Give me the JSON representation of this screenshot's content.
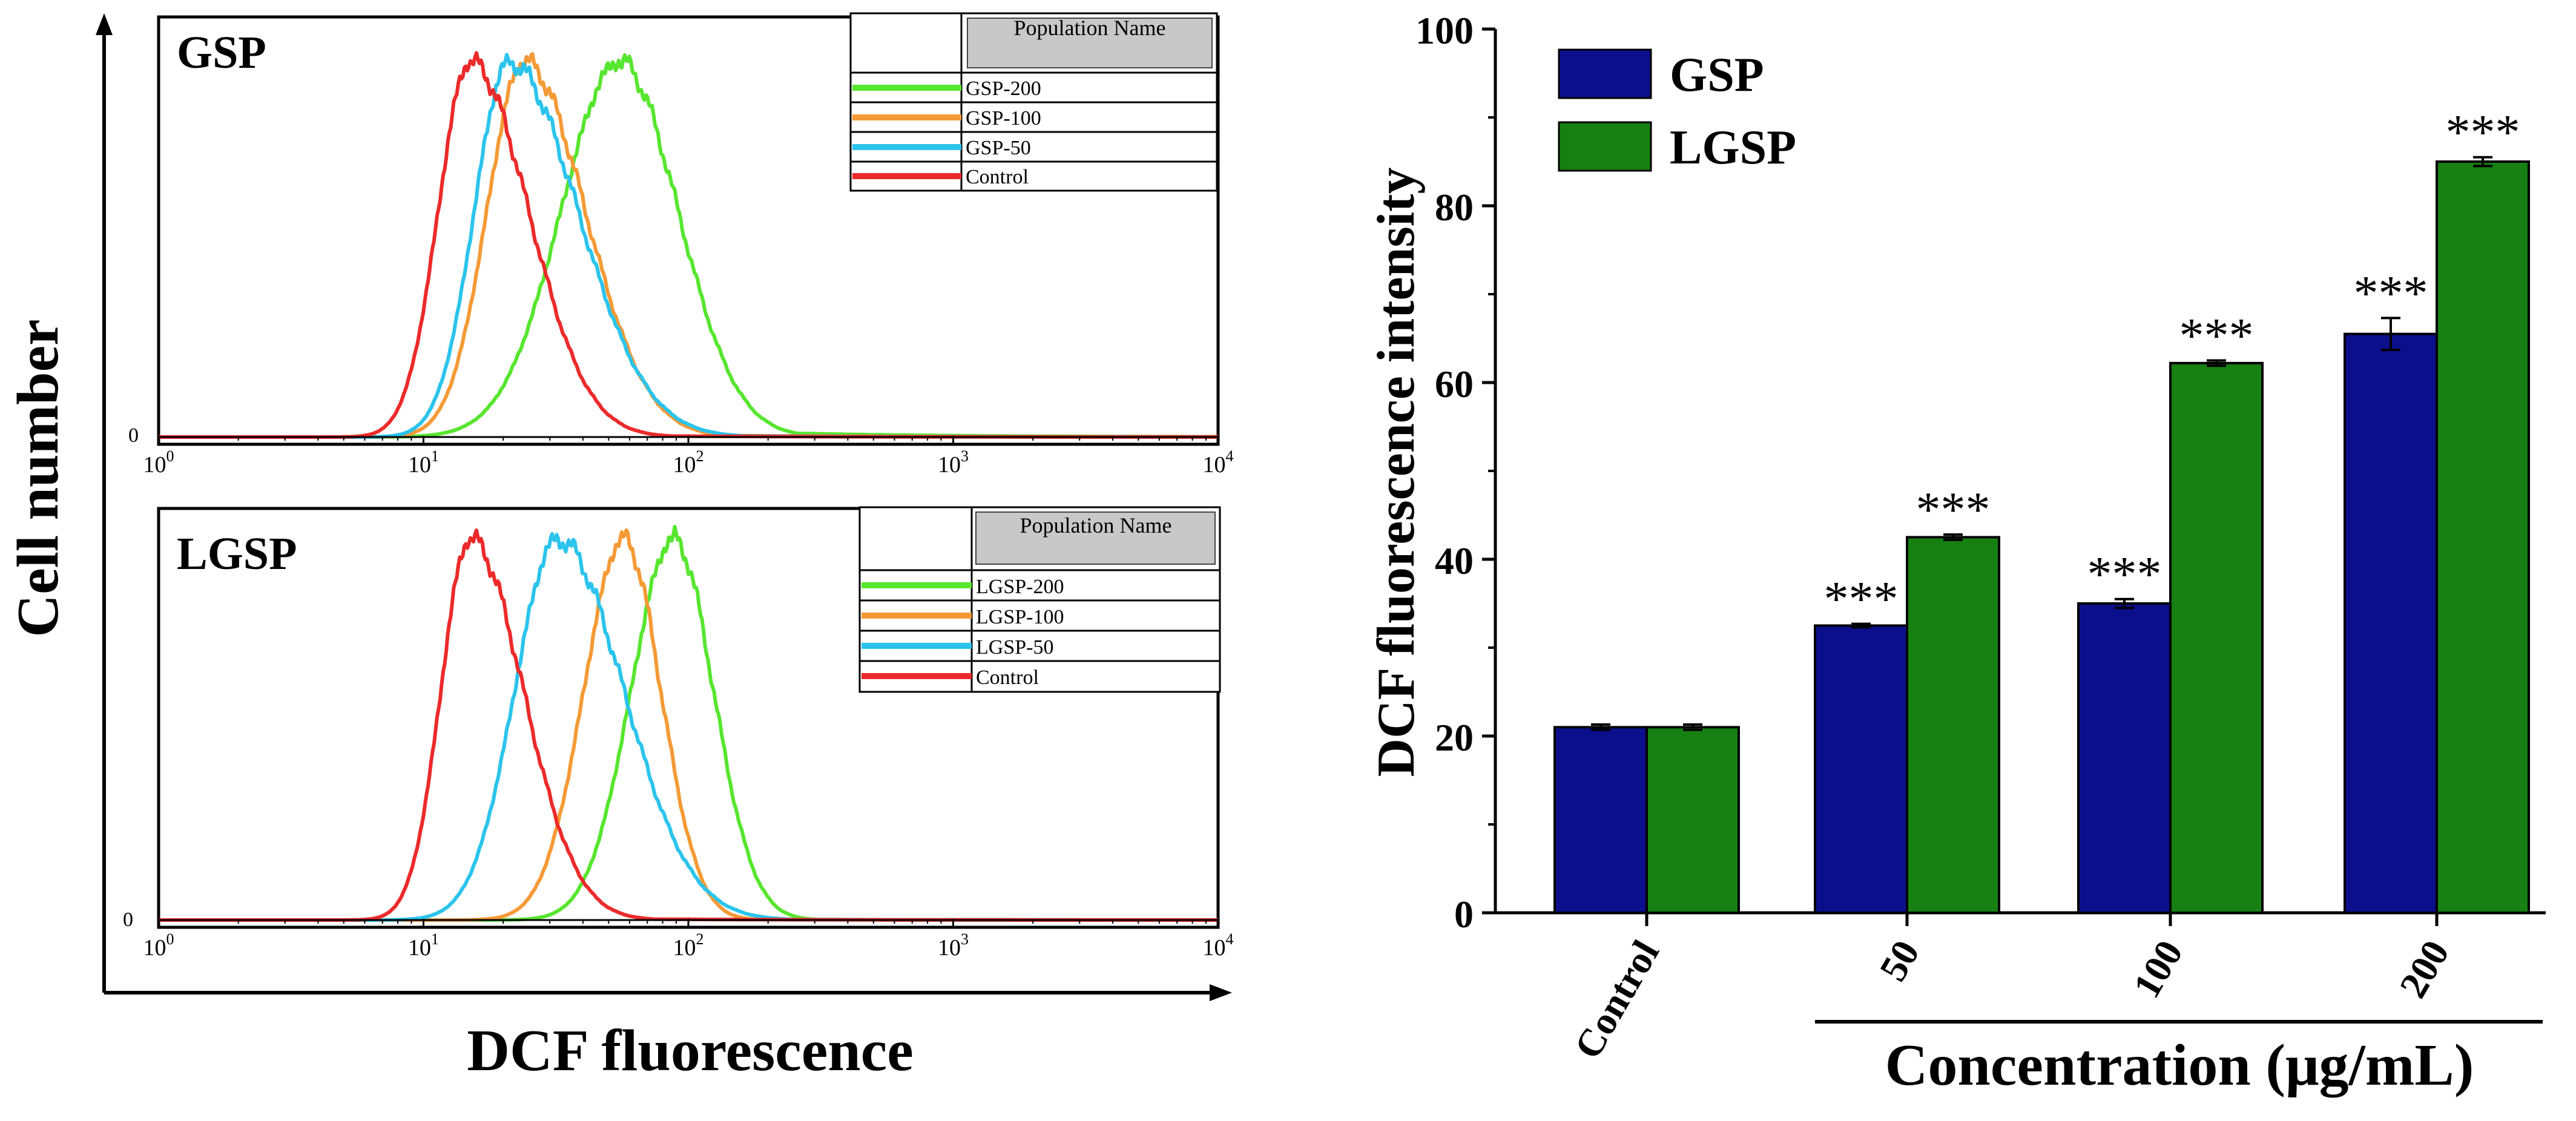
{
  "colors": {
    "gsp_bar": "#0b0f8c",
    "lgsp_bar": "#178012",
    "green_curve": "#57e62f",
    "orange_curve": "#f59a36",
    "blue_curve": "#2bc4ec",
    "red_curve": "#ec2a2a",
    "legend_header_fill": "#c8c8c8",
    "axis": "#000000"
  },
  "left_figure": {
    "y_axis_label": "Cell number",
    "x_axis_label": "DCF fluorescence",
    "legend_header": "Population Name",
    "zero_label": "0",
    "x_tick_labels": [
      {
        "base": "10",
        "exp": "0"
      },
      {
        "base": "10",
        "exp": "1"
      },
      {
        "base": "10",
        "exp": "2"
      },
      {
        "base": "10",
        "exp": "3"
      },
      {
        "base": "10",
        "exp": "4"
      }
    ]
  },
  "chart_data": [
    {
      "type": "line",
      "title": "GSP",
      "x_scale": "log",
      "xlim": [
        1,
        10000
      ],
      "ylim": [
        0,
        1
      ],
      "xlabel": "DCF fluorescence",
      "ylabel": "Cell number",
      "legend_position": "top-right",
      "series": [
        {
          "name": "GSP-200",
          "color_key": "green_curve",
          "peak": 55,
          "sigma_left": 0.22,
          "sigma_right": 0.22,
          "tail": 0.5
        },
        {
          "name": "GSP-100",
          "color_key": "orange_curve",
          "peak": 24,
          "sigma_left": 0.14,
          "sigma_right": 0.23,
          "tail": 0.25
        },
        {
          "name": "GSP-50",
          "color_key": "blue_curve",
          "peak": 21,
          "sigma_left": 0.13,
          "sigma_right": 0.26,
          "tail": 0.2
        },
        {
          "name": "Control",
          "color_key": "red_curve",
          "peak": 15,
          "sigma_left": 0.12,
          "sigma_right": 0.22,
          "tail": 0.15
        }
      ]
    },
    {
      "type": "line",
      "title": "LGSP",
      "x_scale": "log",
      "xlim": [
        1,
        10000
      ],
      "ylim": [
        0,
        1
      ],
      "xlabel": "DCF fluorescence",
      "ylabel": "Cell number",
      "legend_position": "top-right",
      "series": [
        {
          "name": "LGSP-200",
          "color_key": "green_curve",
          "peak": 88,
          "sigma_left": 0.16,
          "sigma_right": 0.15,
          "tail": 0.05
        },
        {
          "name": "LGSP-100",
          "color_key": "orange_curve",
          "peak": 57,
          "sigma_left": 0.15,
          "sigma_right": 0.14,
          "tail": 0.05
        },
        {
          "name": "LGSP-50",
          "color_key": "blue_curve",
          "peak": 32,
          "sigma_left": 0.16,
          "sigma_right": 0.25,
          "tail": 0.1
        },
        {
          "name": "Control",
          "color_key": "red_curve",
          "peak": 15,
          "sigma_left": 0.11,
          "sigma_right": 0.2,
          "tail": 0.12
        }
      ]
    },
    {
      "type": "bar",
      "xlabel": "Concentration (μg/mL)",
      "ylabel": "DCF fluorescence intensity",
      "ylim": [
        0,
        100
      ],
      "yticks": [
        0,
        20,
        40,
        60,
        80,
        100
      ],
      "categories": [
        "Control",
        "50",
        "100",
        "200"
      ],
      "legend_position": "top-left",
      "series": [
        {
          "name": "GSP",
          "color_key": "gsp_bar",
          "values": [
            21,
            32.5,
            35,
            65.5
          ],
          "errors": [
            0.3,
            0.2,
            0.5,
            1.8
          ],
          "significance": [
            "",
            "***",
            "***",
            "***"
          ]
        },
        {
          "name": "LGSP",
          "color_key": "lgsp_bar",
          "values": [
            21,
            42.5,
            62.2,
            85
          ],
          "errors": [
            0.3,
            0.3,
            0.3,
            0.5
          ],
          "significance": [
            "",
            "***",
            "***",
            "***"
          ]
        }
      ]
    }
  ]
}
